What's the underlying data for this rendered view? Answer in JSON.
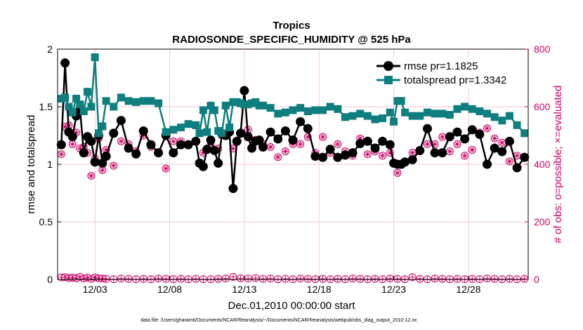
{
  "chart_data": {
    "type": "line",
    "title": "Tropics",
    "subtitle": "RADIOSONDE_SPECIFIC_HUMIDITY @ 525 hPa",
    "xlabel": "Dec.01,2010 00:00:00 start",
    "ylabel": "rmse and totalspread",
    "y2label": "# of obs: o=possible; ×=evaluated",
    "xlim": [
      0,
      31.5
    ],
    "ylim": [
      0,
      2
    ],
    "y2lim": [
      0,
      800
    ],
    "xticks": [
      {
        "x": 2.5,
        "label": "12/03"
      },
      {
        "x": 7.5,
        "label": "12/08"
      },
      {
        "x": 12.5,
        "label": "12/13"
      },
      {
        "x": 17.5,
        "label": "12/18"
      },
      {
        "x": 22.5,
        "label": "12/23"
      },
      {
        "x": 27.5,
        "label": "12/28"
      }
    ],
    "yticks": [
      {
        "v": 0,
        "label": "0"
      },
      {
        "v": 0.5,
        "label": "0.5"
      },
      {
        "v": 1,
        "label": "1"
      },
      {
        "v": 1.5,
        "label": "1.5"
      },
      {
        "v": 2,
        "label": "2"
      }
    ],
    "y2ticks": [
      {
        "v": 0,
        "label": "0"
      },
      {
        "v": 200,
        "label": "200"
      },
      {
        "v": 400,
        "label": "400"
      },
      {
        "v": 600,
        "label": "600"
      },
      {
        "v": 800,
        "label": "800"
      }
    ],
    "grid": true,
    "legend_position": "top-right",
    "colors": {
      "rmse": "#000000",
      "totalspread": "#0e7e7e",
      "obs": "#cc0066",
      "grid": "#f2c6d8"
    },
    "series": [
      {
        "name": "rmse pr=1.1825",
        "key": "rmse",
        "axis": "left",
        "marker": "circle",
        "x": [
          0.25,
          0.5,
          0.75,
          1,
          1.25,
          1.5,
          1.75,
          2,
          2.25,
          2.5,
          2.75,
          3,
          3.25,
          3.75,
          4.25,
          4.75,
          5.25,
          5.75,
          6.25,
          6.75,
          7.25,
          7.75,
          8.25,
          8.75,
          9.25,
          9.5,
          9.75,
          10,
          10.25,
          10.5,
          10.75,
          11,
          11.25,
          11.5,
          11.75,
          12,
          12.25,
          12.5,
          12.75,
          13,
          13.25,
          13.5,
          13.75,
          14.25,
          14.75,
          15.25,
          15.75,
          16.25,
          16.75,
          17.25,
          17.75,
          18.25,
          18.75,
          19.25,
          19.75,
          20.25,
          20.75,
          21.25,
          21.75,
          22.25,
          22.5,
          22.75,
          23,
          23.25,
          23.75,
          24.25,
          24.75,
          25.25,
          25.75,
          26.25,
          26.75,
          27.25,
          27.75,
          28.25,
          28.75,
          29.25,
          29.75,
          30.25,
          30.75,
          31.25
        ],
        "y": [
          1.17,
          1.88,
          1.28,
          1.24,
          1.42,
          1.48,
          1.1,
          1.24,
          1.2,
          1.02,
          1.25,
          1.01,
          1.07,
          1.27,
          1.38,
          1.14,
          1.09,
          1.29,
          1.17,
          1.1,
          1.25,
          1.1,
          1.17,
          1.17,
          1.2,
          1.01,
          0.98,
          1.13,
          1.21,
          1.12,
          1.01,
          1.26,
          1.25,
          1.28,
          0.79,
          1.2,
          1.27,
          1.64,
          1.24,
          1.14,
          1.2,
          1.21,
          1.15,
          1.28,
          1.22,
          1.29,
          1.21,
          1.37,
          1.31,
          1.07,
          1.06,
          1.13,
          1.06,
          1.08,
          1.1,
          1.18,
          1.2,
          1.14,
          1.2,
          1.17,
          1.01,
          1.0,
          1.0,
          1.02,
          1.04,
          1.12,
          1.31,
          1.1,
          1.1,
          1.24,
          1.28,
          1.22,
          1.3,
          1.26,
          1.0,
          1.14,
          1.11,
          1.2,
          0.97,
          1.06
        ]
      },
      {
        "name": "totalspread pr=1.3342",
        "key": "totalspread",
        "axis": "left",
        "marker": "square",
        "x": [
          0.25,
          0.5,
          0.75,
          1,
          1.25,
          1.5,
          1.75,
          2,
          2.25,
          2.5,
          2.75,
          3,
          3.25,
          3.75,
          4.25,
          4.75,
          5.25,
          5.75,
          6.25,
          6.75,
          7.25,
          7.75,
          8.25,
          8.75,
          9.25,
          9.5,
          9.75,
          10,
          10.25,
          10.5,
          10.75,
          11,
          11.25,
          11.5,
          11.75,
          12,
          12.25,
          12.5,
          12.75,
          13,
          13.25,
          13.5,
          13.75,
          14.25,
          14.75,
          15.25,
          15.75,
          16.25,
          16.75,
          17.25,
          17.75,
          18.25,
          18.75,
          19.25,
          19.75,
          20.25,
          20.75,
          21.25,
          21.75,
          22.25,
          22.5,
          22.75,
          23,
          23.25,
          23.75,
          24.25,
          24.75,
          25.25,
          25.75,
          26.25,
          26.75,
          27.25,
          27.75,
          28.25,
          28.75,
          29.25,
          29.75,
          30.25,
          30.75,
          31.25
        ],
        "y": [
          1.57,
          1.58,
          1.5,
          1.45,
          1.57,
          1.52,
          1.46,
          1.63,
          1.5,
          1.93,
          1.27,
          1.33,
          1.55,
          1.5,
          1.58,
          1.55,
          1.54,
          1.55,
          1.55,
          1.53,
          1.28,
          1.3,
          1.32,
          1.35,
          1.34,
          1.27,
          1.47,
          1.28,
          1.51,
          1.47,
          1.29,
          1.27,
          1.51,
          1.32,
          1.54,
          1.54,
          1.53,
          1.52,
          1.52,
          1.53,
          1.54,
          1.51,
          1.51,
          1.49,
          1.44,
          1.45,
          1.47,
          1.49,
          1.46,
          1.47,
          1.47,
          1.5,
          1.48,
          1.41,
          1.42,
          1.44,
          1.42,
          1.39,
          1.4,
          1.45,
          1.37,
          1.55,
          1.55,
          1.45,
          1.42,
          1.42,
          1.45,
          1.44,
          1.44,
          1.43,
          1.48,
          1.5,
          1.48,
          1.46,
          1.44,
          1.41,
          1.38,
          1.42,
          1.34,
          1.27
        ]
      },
      {
        "name": "obs possible",
        "key": "possible",
        "axis": "right",
        "marker": "circle-open",
        "x": [
          0.25,
          0.5,
          0.75,
          1,
          1.25,
          1.5,
          1.75,
          2,
          2.25,
          2.5,
          2.75,
          3,
          3.25,
          3.75,
          4.25,
          4.75,
          5.25,
          5.75,
          6.25,
          6.75,
          7.25,
          7.75,
          8.25,
          8.75,
          9.25,
          9.75,
          10.25,
          10.75,
          11.25,
          11.75,
          12.25,
          12.75,
          13.25,
          13.75,
          14.25,
          14.75,
          15.25,
          15.75,
          16.25,
          16.75,
          17.25,
          17.75,
          18.25,
          18.75,
          19.25,
          19.75,
          20.25,
          20.75,
          21.25,
          21.75,
          22.25,
          22.75,
          23.25,
          23.75,
          24.25,
          24.75,
          25.25,
          25.75,
          26.25,
          26.75,
          27.25,
          27.75,
          28.25,
          28.75,
          29.25,
          29.75,
          30.25,
          30.75,
          31.25
        ],
        "y": [
          435,
          530,
          535,
          470,
          510,
          455,
          460,
          440,
          360,
          420,
          490,
          380,
          450,
          395,
          480,
          470,
          445,
          500,
          460,
          440,
          385,
          480,
          480,
          470,
          535,
          440,
          470,
          455,
          505,
          455,
          510,
          520,
          485,
          470,
          460,
          425,
          445,
          470,
          470,
          495,
          440,
          495,
          440,
          470,
          445,
          430,
          490,
          435,
          445,
          430,
          440,
          370,
          405,
          440,
          445,
          470,
          470,
          495,
          445,
          470,
          430,
          450,
          510,
          525,
          490,
          475,
          410,
          430,
          425
        ]
      },
      {
        "name": "obs evaluated",
        "key": "evaluated",
        "axis": "right",
        "marker": "x",
        "x": [
          0.25,
          0.5,
          0.75,
          1,
          1.25,
          1.5,
          1.75,
          2,
          2.25,
          2.5,
          2.75,
          3,
          3.25,
          3.75,
          4.25,
          4.75,
          5.25,
          5.75,
          6.25,
          6.75,
          7.25,
          7.75,
          8.25,
          8.75,
          9.25,
          9.75,
          10.25,
          10.75,
          11.25,
          11.75,
          12.25,
          12.75,
          13.25,
          13.75,
          14.25,
          14.75,
          15.25,
          15.75,
          16.25,
          16.75,
          17.25,
          17.75,
          18.25,
          18.75,
          19.25,
          19.75,
          20.25,
          20.75,
          21.25,
          21.75,
          22.25,
          22.75,
          23.25,
          23.75,
          24.25,
          24.75,
          25.25,
          25.75,
          26.25,
          26.75,
          27.25,
          27.75,
          28.25,
          28.75,
          29.25,
          29.75,
          30.25,
          30.75,
          31.25
        ],
        "y": [
          435,
          530,
          535,
          470,
          510,
          455,
          460,
          440,
          360,
          420,
          490,
          380,
          450,
          395,
          480,
          470,
          445,
          500,
          460,
          440,
          385,
          480,
          480,
          470,
          535,
          440,
          470,
          455,
          505,
          455,
          510,
          520,
          485,
          470,
          460,
          425,
          445,
          470,
          470,
          495,
          440,
          495,
          440,
          470,
          445,
          430,
          490,
          435,
          445,
          430,
          440,
          370,
          405,
          440,
          445,
          470,
          470,
          495,
          445,
          470,
          430,
          450,
          510,
          525,
          490,
          475,
          410,
          430,
          425
        ]
      },
      {
        "name": "obs near zero",
        "key": "zeros",
        "axis": "right",
        "marker": "circle-x",
        "x": [
          0.25,
          0.5,
          0.75,
          1,
          1.25,
          1.5,
          1.75,
          2,
          2.25,
          2.5,
          2.75,
          3,
          3.25,
          3.75,
          4.25,
          4.75,
          5.25,
          5.75,
          6.25,
          6.75,
          7.25,
          7.75,
          8.25,
          8.75,
          9.25,
          9.75,
          10.25,
          10.75,
          11.25,
          11.75,
          12.25,
          12.75,
          13.25,
          13.75,
          14.25,
          14.75,
          15.25,
          15.75,
          16.25,
          16.75,
          17.25,
          17.75,
          18.25,
          18.75,
          19.25,
          19.75,
          20.25,
          20.75,
          21.25,
          21.75,
          22.25,
          22.75,
          23.25,
          23.75,
          24.25,
          24.75,
          25.25,
          25.75,
          26.25,
          26.75,
          27.25,
          27.75,
          28.25,
          28.75,
          29.25,
          29.75,
          30.25,
          30.75,
          31.25
        ],
        "y": [
          7,
          8,
          5,
          6,
          4,
          9,
          3,
          6,
          2,
          7,
          4,
          3,
          2,
          1,
          3,
          2,
          1,
          2,
          1,
          3,
          2,
          1,
          2,
          1,
          2,
          1,
          1,
          2,
          3,
          9,
          4,
          3,
          5,
          2,
          3,
          1,
          2,
          1,
          3,
          2,
          1,
          2,
          1,
          2,
          1,
          3,
          2,
          1,
          2,
          1,
          3,
          2,
          1,
          8,
          2,
          1,
          3,
          2,
          1,
          2,
          1,
          2,
          1,
          3,
          2,
          1,
          2,
          1,
          2
        ]
      }
    ],
    "footnote": "data file: /Users/gharamti/Documents/NCAR/Reanalysis/~/Documents/NCAR/Reanalysis/webpub/obs_diag_output_2010-12.nc"
  }
}
